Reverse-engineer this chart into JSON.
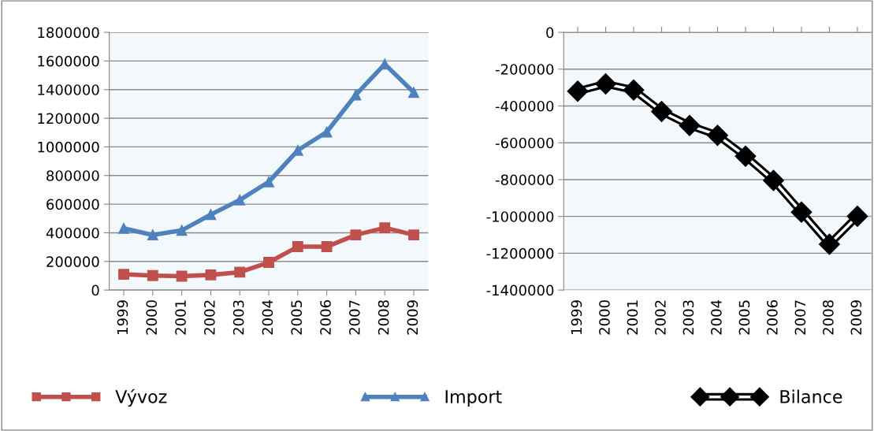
{
  "chart_data": [
    {
      "type": "line",
      "categories": [
        "1999",
        "2000",
        "2001",
        "2002",
        "2003",
        "2004",
        "2005",
        "2006",
        "2007",
        "2008",
        "2009"
      ],
      "series": [
        {
          "name": "Vývoz",
          "color": "#c0504d",
          "marker": "square",
          "values": [
            110000,
            101000,
            97000,
            106000,
            125000,
            193000,
            303000,
            303000,
            385000,
            435000,
            385000
          ]
        },
        {
          "name": "Import",
          "color": "#4f81bd",
          "marker": "triangle",
          "values": [
            431000,
            385000,
            417000,
            527000,
            629000,
            756000,
            976000,
            1104000,
            1363000,
            1578000,
            1380000
          ]
        }
      ],
      "ylim": [
        0,
        1800000
      ],
      "yticks": [
        0,
        200000,
        400000,
        600000,
        800000,
        1000000,
        1200000,
        1400000,
        1600000,
        1800000
      ],
      "grid": "y",
      "legend": "bottom"
    },
    {
      "type": "line",
      "categories": [
        "1999",
        "2000",
        "2001",
        "2002",
        "2003",
        "2004",
        "2005",
        "2006",
        "2007",
        "2008",
        "2009"
      ],
      "series": [
        {
          "name": "Bilance",
          "color": "#000000",
          "marker": "diamond",
          "values": [
            -320000,
            -280000,
            -313000,
            -430000,
            -506000,
            -559000,
            -673000,
            -804000,
            -977000,
            -1151000,
            -999000
          ]
        }
      ],
      "ylim": [
        -1400000,
        0
      ],
      "yticks": [
        -1400000,
        -1200000,
        -1000000,
        -800000,
        -600000,
        -400000,
        -200000,
        0
      ],
      "grid": "y",
      "legend": "bottom"
    }
  ]
}
